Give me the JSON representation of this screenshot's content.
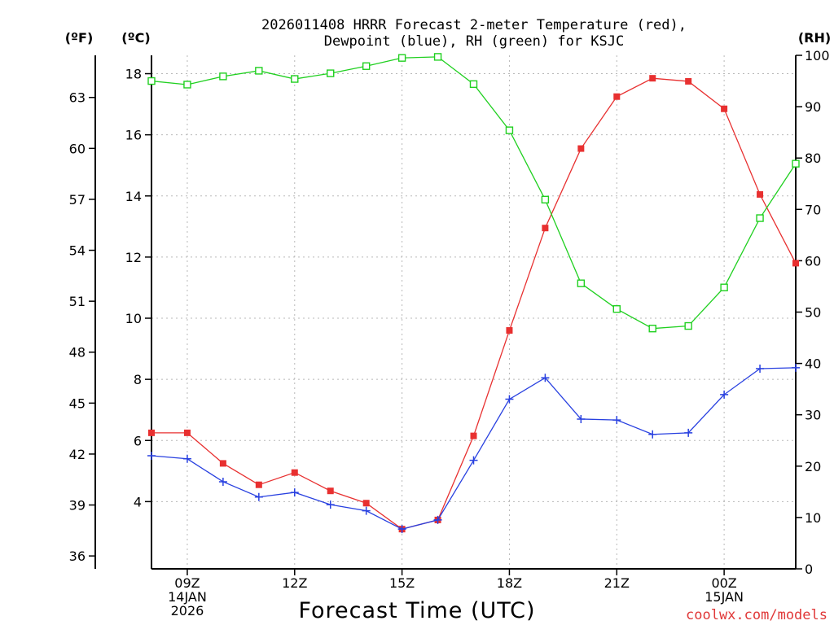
{
  "chart_data": {
    "type": "line",
    "title_line1": "2026011408 HRRR Forecast 2-meter Temperature (red),",
    "title_line2": "Dewpoint (blue), RH (green) for KSJC",
    "xlabel": "Forecast Time (UTC)",
    "unit_f": "(ºF)",
    "unit_c": "(ºC)",
    "unit_rh": "(RH)",
    "watermark": "coolwx.com/models",
    "x_hours": [
      8,
      9,
      10,
      11,
      12,
      13,
      14,
      15,
      16,
      17,
      18,
      19,
      20,
      21,
      22,
      23,
      24,
      25,
      26
    ],
    "xlim": [
      8,
      26
    ],
    "x_ticks": [
      {
        "hour": 9,
        "lines": [
          "09Z",
          "14JAN",
          "2026"
        ]
      },
      {
        "hour": 12,
        "lines": [
          "12Z"
        ]
      },
      {
        "hour": 15,
        "lines": [
          "15Z"
        ]
      },
      {
        "hour": 18,
        "lines": [
          "18Z"
        ]
      },
      {
        "hour": 21,
        "lines": [
          "21Z"
        ]
      },
      {
        "hour": 24,
        "lines": [
          "00Z",
          "15JAN"
        ]
      }
    ],
    "ylim_c": [
      1.8,
      18.6
    ],
    "y_ticks_c": [
      4,
      6,
      8,
      10,
      12,
      14,
      16,
      18
    ],
    "y_ticks_f": [
      36,
      39,
      42,
      45,
      48,
      51,
      54,
      57,
      60,
      63
    ],
    "y_ticks_rh": [
      0,
      10,
      20,
      30,
      40,
      50,
      60,
      70,
      80,
      90,
      100
    ],
    "series": [
      {
        "name": "Temperature",
        "unit": "C",
        "color": "#e83030",
        "marker": "filled-square",
        "values": [
          6.25,
          6.25,
          5.25,
          4.55,
          4.95,
          4.35,
          3.95,
          3.1,
          3.4,
          6.15,
          9.6,
          12.95,
          15.55,
          17.25,
          17.85,
          17.75,
          16.85,
          14.05,
          11.8
        ]
      },
      {
        "name": "Dewpoint",
        "unit": "C",
        "color": "#2840e0",
        "marker": "plus",
        "values": [
          5.5,
          5.4,
          4.65,
          4.15,
          4.3,
          3.9,
          3.7,
          3.1,
          3.4,
          5.35,
          7.35,
          8.05,
          6.7,
          6.67,
          6.2,
          6.25,
          7.5,
          8.35,
          8.38
        ]
      },
      {
        "name": "RH",
        "unit": "%",
        "color": "#20d020",
        "marker": "open-square",
        "values": [
          95,
          94.3,
          95.9,
          97,
          95.4,
          96.5,
          97.9,
          99.5,
          99.7,
          94.4,
          85.4,
          71.9,
          55.6,
          50.6,
          46.8,
          47.3,
          54.8,
          68.3,
          78.9
        ]
      }
    ]
  }
}
